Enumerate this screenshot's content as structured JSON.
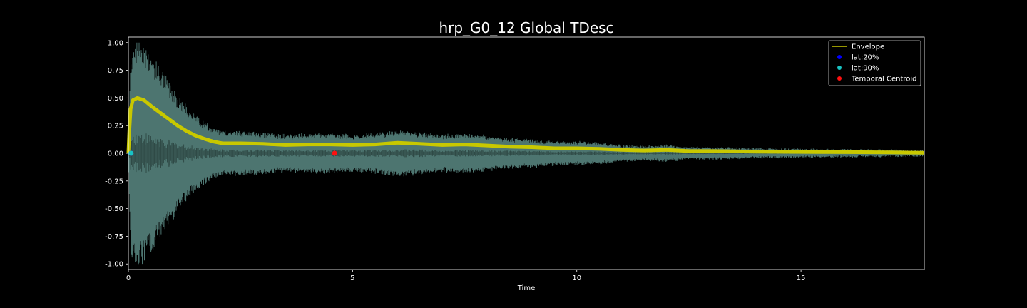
{
  "chart_data": {
    "type": "line",
    "title": "hrp_G0_12 Global TDesc",
    "xlabel": "Time",
    "ylabel": "",
    "xlim": [
      0,
      17.75
    ],
    "ylim": [
      -1.05,
      1.05
    ],
    "x_ticks": [
      0,
      5,
      10,
      15
    ],
    "y_ticks": [
      -1.0,
      -0.75,
      -0.5,
      -0.25,
      0.0,
      0.25,
      0.5,
      0.75,
      1.0
    ],
    "grid": false,
    "legend_position": "top-right",
    "background": "#000000",
    "series": [
      {
        "name": "Envelope",
        "color": "#c8c800",
        "points": [
          [
            0.0,
            0.0
          ],
          [
            0.02,
            0.2
          ],
          [
            0.05,
            0.4
          ],
          [
            0.1,
            0.48
          ],
          [
            0.2,
            0.5
          ],
          [
            0.35,
            0.48
          ],
          [
            0.5,
            0.43
          ],
          [
            0.7,
            0.37
          ],
          [
            0.9,
            0.31
          ],
          [
            1.1,
            0.25
          ],
          [
            1.3,
            0.2
          ],
          [
            1.5,
            0.16
          ],
          [
            1.7,
            0.13
          ],
          [
            1.9,
            0.105
          ],
          [
            2.1,
            0.09
          ],
          [
            2.5,
            0.09
          ],
          [
            3.0,
            0.085
          ],
          [
            3.5,
            0.075
          ],
          [
            4.0,
            0.08
          ],
          [
            4.5,
            0.08
          ],
          [
            5.0,
            0.075
          ],
          [
            5.5,
            0.08
          ],
          [
            6.0,
            0.095
          ],
          [
            6.5,
            0.085
          ],
          [
            7.0,
            0.075
          ],
          [
            7.5,
            0.08
          ],
          [
            8.0,
            0.07
          ],
          [
            8.5,
            0.06
          ],
          [
            9.0,
            0.055
          ],
          [
            9.5,
            0.045
          ],
          [
            10.0,
            0.045
          ],
          [
            10.5,
            0.04
          ],
          [
            11.0,
            0.03
          ],
          [
            11.5,
            0.025
          ],
          [
            12.0,
            0.03
          ],
          [
            12.5,
            0.02
          ],
          [
            13.0,
            0.02
          ],
          [
            14.0,
            0.015
          ],
          [
            15.0,
            0.012
          ],
          [
            16.0,
            0.01
          ],
          [
            17.0,
            0.008
          ],
          [
            17.75,
            0.005
          ]
        ]
      },
      {
        "name": "lat:20%",
        "color": "#0000ff",
        "points": [
          [
            0.06,
            0.0
          ]
        ]
      },
      {
        "name": "lat:90%",
        "color": "#19c3c3",
        "points": [
          [
            0.06,
            0.0
          ]
        ]
      },
      {
        "name": "Temporal Centroid",
        "color": "#ff1010",
        "points": [
          [
            4.6,
            0.0
          ]
        ]
      }
    ],
    "waveform_color": "#5a8a84"
  }
}
